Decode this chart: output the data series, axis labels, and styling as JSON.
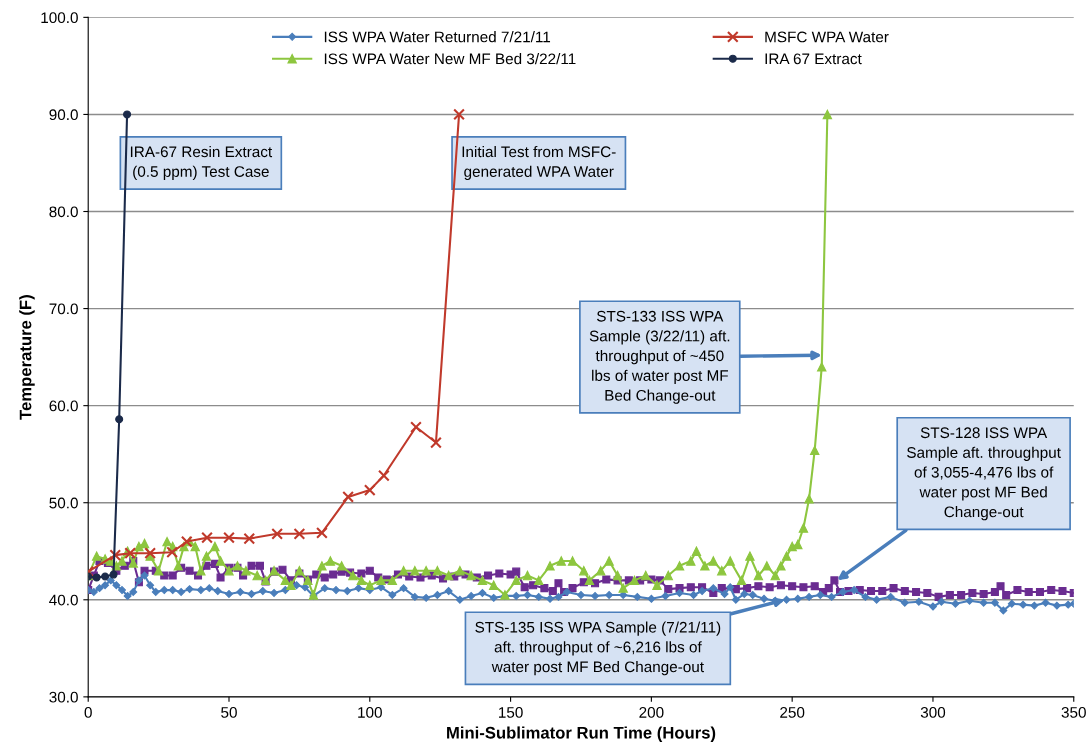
{
  "chart_data": {
    "type": "line",
    "xlabel": "Mini-Sublimator Run Time (Hours)",
    "ylabel": "Temperature (F)",
    "xlim": [
      0,
      350
    ],
    "xticks": [
      0,
      50,
      100,
      150,
      200,
      250,
      300,
      350
    ],
    "ylim": [
      30,
      100
    ],
    "yticks": [
      {
        "value": 30,
        "label": "30.0"
      },
      {
        "value": 40,
        "label": "40.0"
      },
      {
        "value": 50,
        "label": "50.0"
      },
      {
        "value": 60,
        "label": "60.0"
      },
      {
        "value": 70,
        "label": "70.0"
      },
      {
        "value": 80,
        "label": "80.0"
      },
      {
        "value": 90,
        "label": "90.0"
      },
      {
        "value": 100,
        "label": "100.0"
      }
    ],
    "grid": "y",
    "legend": "top",
    "series": [
      {
        "name": "ISS WPA Water Returned 7/21/11",
        "color": "#4a7ebb",
        "marker": "diamond",
        "x": [
          0,
          2,
          4,
          6,
          8,
          10,
          12,
          14,
          16,
          18,
          20,
          22,
          24,
          27,
          30,
          33,
          36,
          40,
          43,
          46,
          50,
          54,
          58,
          62,
          66,
          70,
          74,
          77,
          80,
          84,
          88,
          92,
          96,
          100,
          104,
          108,
          112,
          116,
          120,
          124,
          128,
          132,
          136,
          140,
          144,
          148,
          152,
          156,
          160,
          164,
          167,
          170,
          175,
          180,
          185,
          190,
          195,
          200,
          205,
          210,
          215,
          218,
          222,
          226,
          228,
          230,
          233,
          236,
          240,
          244,
          248,
          252,
          256,
          260,
          264,
          268,
          272,
          276,
          280,
          285,
          290,
          295,
          300,
          303,
          308,
          313,
          318,
          322,
          325,
          328,
          332,
          336,
          340,
          344,
          348,
          350
        ],
        "values": [
          41.0,
          40.8,
          41.2,
          41.5,
          42.0,
          41.5,
          41.0,
          40.4,
          40.8,
          42.0,
          42.5,
          41.5,
          40.8,
          41.0,
          41.0,
          40.8,
          41.1,
          41.0,
          41.2,
          40.9,
          40.6,
          40.8,
          40.6,
          40.9,
          40.7,
          41.0,
          41.5,
          41.3,
          40.4,
          41.2,
          41.0,
          40.9,
          41.2,
          41.0,
          41.3,
          40.5,
          41.2,
          40.3,
          40.2,
          40.5,
          40.9,
          40.0,
          40.4,
          40.7,
          40.2,
          40.4,
          40.4,
          40.5,
          40.3,
          40.1,
          40.3,
          40.8,
          40.5,
          40.4,
          40.5,
          40.5,
          40.3,
          40.1,
          40.4,
          40.7,
          40.5,
          40.9,
          41.2,
          40.6,
          41.3,
          40.0,
          40.6,
          40.5,
          40.1,
          39.9,
          40.0,
          40.1,
          40.3,
          40.5,
          40.3,
          40.8,
          41.0,
          40.3,
          40.0,
          40.3,
          39.7,
          39.8,
          39.3,
          39.8,
          39.6,
          39.9,
          39.7,
          39.7,
          38.9,
          39.6,
          39.5,
          39.4,
          39.7,
          39.4,
          39.5,
          39.6
        ]
      },
      {
        "name": "MSFC WPA Water",
        "color": "#c0392b",
        "marker": "cross",
        "x": [
          0,
          9.6,
          14.9,
          22,
          29.8,
          35,
          42.2,
          50,
          57.2,
          67.1,
          75,
          83,
          92.3,
          100,
          105,
          116.4,
          123.5,
          131.7
        ],
        "values": [
          42.9,
          44.6,
          44.8,
          44.8,
          44.9,
          46.0,
          46.4,
          46.4,
          46.3,
          46.8,
          46.8,
          46.9,
          50.6,
          51.3,
          52.8,
          57.8,
          56.2,
          90.0
        ]
      },
      {
        "name": "ISS WPA Water New MF Bed 3/22/11",
        "color": "#8dc63f",
        "marker": "triangle",
        "x": [
          0,
          3,
          6,
          8,
          10,
          12,
          14,
          16,
          18,
          20,
          22,
          25,
          28,
          30,
          32,
          34,
          36,
          38,
          40,
          42,
          45,
          47,
          50,
          53,
          56,
          60,
          63,
          66,
          70,
          72,
          75,
          78,
          80,
          83,
          86,
          90,
          94,
          97,
          100,
          104,
          108,
          112,
          116,
          120,
          124,
          128,
          132,
          136,
          140,
          144,
          148,
          152,
          156,
          160,
          164,
          168,
          172,
          176,
          178,
          182,
          185,
          188,
          190,
          194,
          198,
          202,
          206,
          210,
          214,
          216,
          219,
          222,
          225,
          228,
          232,
          235,
          238,
          241,
          244,
          246,
          248,
          250,
          252,
          254,
          256,
          258,
          260.5,
          262.5
        ],
        "values": [
          42.5,
          44.5,
          44.2,
          44.0,
          43.5,
          44.0,
          45.0,
          43.8,
          45.5,
          45.8,
          44.5,
          43.0,
          46.0,
          45.5,
          43.5,
          45.5,
          46.0,
          45.5,
          43.0,
          44.5,
          45.5,
          44.0,
          43.0,
          43.5,
          43.0,
          42.5,
          42.0,
          43.0,
          42.0,
          41.5,
          43.0,
          42.0,
          40.5,
          43.5,
          44.0,
          43.5,
          42.5,
          42.0,
          41.5,
          42.0,
          42.0,
          43.0,
          43.0,
          43.0,
          43.0,
          42.5,
          43.0,
          42.5,
          42.0,
          41.5,
          40.5,
          42.0,
          42.5,
          42.0,
          43.5,
          44.0,
          44.0,
          43.0,
          42.0,
          43.0,
          44.0,
          42.5,
          41.2,
          42.0,
          42.5,
          41.5,
          42.5,
          43.5,
          44.0,
          45.0,
          43.5,
          44.0,
          43.0,
          44.0,
          42.0,
          44.5,
          42.5,
          43.5,
          42.5,
          43.5,
          44.5,
          45.5,
          45.7,
          47.4,
          50.4,
          55.4,
          64.0,
          90.0
        ]
      },
      {
        "name": "IRA 67 Extract",
        "color": "#1b2a4a",
        "marker": "circle",
        "x": [
          0,
          3,
          6,
          9,
          11,
          13.8
        ],
        "values": [
          42.4,
          42.3,
          42.4,
          42.6,
          58.6,
          90.0
        ]
      },
      {
        "color": "#6a2c91",
        "marker": "square",
        "x": [
          0,
          2,
          4,
          7,
          10,
          13,
          16,
          18,
          20,
          24,
          27,
          30,
          33,
          36,
          39,
          42,
          45,
          47,
          50,
          53,
          55,
          58,
          61,
          63,
          66,
          69,
          72,
          75,
          78,
          81,
          84,
          87,
          90,
          93,
          97,
          100,
          103,
          106,
          110,
          114,
          118,
          122,
          126,
          130,
          134,
          138,
          142,
          146,
          150,
          152,
          155,
          158,
          162,
          165,
          167,
          169,
          172,
          176,
          180,
          184,
          188,
          192,
          196,
          200,
          203,
          206,
          210,
          214,
          218,
          222,
          225,
          230,
          234,
          238,
          242,
          246,
          250,
          254,
          258,
          261,
          263,
          265,
          267,
          270,
          274,
          278,
          282,
          286,
          290,
          294,
          298,
          302,
          306,
          310,
          314,
          318,
          322,
          324,
          326,
          330,
          334,
          338,
          342,
          346,
          350
        ],
        "values": [
          41.0,
          42.5,
          44.0,
          43.8,
          43.0,
          43.5,
          44.0,
          41.8,
          43.0,
          43.0,
          42.5,
          42.5,
          43.3,
          43.0,
          42.5,
          43.5,
          43.7,
          42.3,
          43.3,
          43.3,
          42.5,
          43.5,
          43.5,
          41.9,
          42.9,
          43.1,
          42.0,
          42.7,
          42.1,
          42.6,
          42.3,
          42.6,
          42.9,
          42.8,
          42.7,
          43.0,
          42.3,
          42.1,
          42.6,
          42.4,
          42.3,
          42.5,
          42.2,
          42.4,
          42.6,
          42.3,
          42.5,
          42.7,
          42.6,
          42.9,
          41.3,
          41.5,
          41.2,
          40.9,
          41.7,
          40.8,
          41.2,
          41.8,
          41.7,
          42.1,
          42.0,
          42.0,
          42.0,
          42.1,
          42.0,
          41.1,
          41.2,
          41.3,
          41.3,
          40.7,
          41.2,
          41.1,
          41.2,
          41.4,
          41.3,
          41.5,
          41.4,
          41.3,
          41.4,
          40.8,
          41.2,
          42.0,
          40.8,
          40.9,
          41.0,
          40.9,
          40.9,
          41.2,
          40.9,
          40.8,
          40.7,
          40.3,
          40.5,
          40.5,
          40.7,
          40.6,
          40.8,
          41.4,
          40.5,
          41.0,
          40.8,
          40.8,
          41.0,
          40.9,
          40.7
        ]
      }
    ],
    "annotations": [
      {
        "text": "IRA-67 Resin Extract\n(0.5 ppm) Test Case",
        "x": 13.8,
        "y": 83.9
      },
      {
        "text": "Initial Test from MSFC-\ngenerated WPA Water",
        "x": 130.3,
        "y": 83.9
      },
      {
        "text": "STS-133 ISS WPA\nSample (3/22/11) aft.\nthroughput of ~450\nlbs of water post MF\nBed Change-out",
        "x": 260.6,
        "y": 65.2
      },
      {
        "text": "STS-128 ISS WPA\nSample aft. throughput\nof 3,055-4,476 lbs of\nwater post MF Bed\nChange-out",
        "x": 266,
        "y": 42.0
      },
      {
        "text": "STS-135 ISS WPA Sample (7/21/11)\naft. throughput of ~6,216 lbs of\nwater post MF Bed Change-out",
        "x": 247.4,
        "y": 40.0
      }
    ]
  }
}
